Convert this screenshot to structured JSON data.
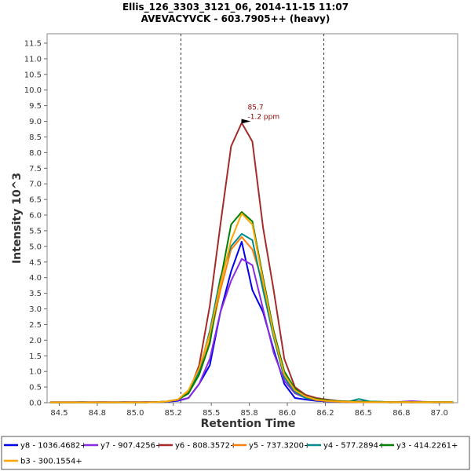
{
  "chart_data": {
    "type": "line",
    "title": "Ellis_126_3303_3121_06, 2014-11-15 11:07",
    "subtitle": "AVEVACYVCK - 603.7905++ (heavy)",
    "xlabel": "Retention Time",
    "ylabel": "Intensity 10^3",
    "xlim": [
      84.42,
      87.12
    ],
    "ylim": [
      0,
      11.8
    ],
    "x_ticks": [
      "84.5",
      "84.8",
      "85.0",
      "85.2",
      "85.5",
      "85.8",
      "86.0",
      "86.2",
      "86.5",
      "86.8",
      "87.0"
    ],
    "x_tick_values": [
      84.5,
      84.75,
      85.0,
      85.25,
      85.5,
      85.75,
      86.0,
      86.25,
      86.5,
      86.75,
      87.0
    ],
    "y_ticks": [
      "0.0",
      "0.5",
      "1.0",
      "1.5",
      "2.0",
      "2.5",
      "3.0",
      "3.5",
      "4.0",
      "4.5",
      "5.0",
      "5.5",
      "6.0",
      "6.5",
      "7.0",
      "7.5",
      "8.0",
      "8.5",
      "9.0",
      "9.5",
      "10.0",
      "10.5",
      "11.0",
      "11.5"
    ],
    "y_tick_values": [
      0,
      0.5,
      1,
      1.5,
      2,
      2.5,
      3,
      3.5,
      4,
      4.5,
      5,
      5.5,
      6,
      6.5,
      7,
      7.5,
      8,
      8.5,
      9,
      9.5,
      10,
      10.5,
      11,
      11.5
    ],
    "boundaries": [
      85.3,
      86.24
    ],
    "x": [
      84.44,
      84.51,
      84.58,
      84.65,
      84.72,
      84.79,
      84.86,
      84.93,
      85.0,
      85.07,
      85.14,
      85.21,
      85.28,
      85.35,
      85.42,
      85.49,
      85.56,
      85.63,
      85.7,
      85.77,
      85.84,
      85.91,
      85.98,
      86.05,
      86.12,
      86.19,
      86.26,
      86.33,
      86.4,
      86.47,
      86.54,
      86.61,
      86.68,
      86.75,
      86.82,
      86.89,
      86.96,
      87.03,
      87.09
    ],
    "series": [
      {
        "name": "y8 - 1036.4682+",
        "color": "#0000ee",
        "values": [
          0.01,
          0.01,
          0.01,
          0.02,
          0.01,
          0.01,
          0.01,
          0.02,
          0.01,
          0.02,
          0.02,
          0.03,
          0.06,
          0.15,
          0.6,
          1.2,
          2.9,
          4.2,
          5.15,
          3.6,
          2.9,
          1.7,
          0.6,
          0.15,
          0.1,
          0.06,
          0.04,
          0.03,
          0.02,
          0.02,
          0.02,
          0.02,
          0.01,
          0.02,
          0.01,
          0.02,
          0.01,
          0.01,
          0.01
        ]
      },
      {
        "name": "y7 - 907.4256+",
        "color": "#8a2be2",
        "values": [
          0.01,
          0.01,
          0.01,
          0.01,
          0.01,
          0.02,
          0.01,
          0.01,
          0.02,
          0.01,
          0.02,
          0.04,
          0.08,
          0.15,
          0.6,
          1.4,
          2.9,
          3.9,
          4.6,
          4.4,
          3.0,
          1.6,
          0.7,
          0.3,
          0.15,
          0.1,
          0.06,
          0.04,
          0.03,
          0.03,
          0.02,
          0.02,
          0.02,
          0.03,
          0.05,
          0.03,
          0.02,
          0.02,
          0.02
        ]
      },
      {
        "name": "y6 - 808.3572+",
        "color": "#a52a2a",
        "values": [
          0.02,
          0.02,
          0.02,
          0.02,
          0.02,
          0.02,
          0.02,
          0.02,
          0.02,
          0.02,
          0.02,
          0.04,
          0.1,
          0.3,
          1.2,
          3.1,
          5.7,
          8.2,
          8.95,
          8.35,
          5.6,
          3.6,
          1.4,
          0.5,
          0.25,
          0.15,
          0.1,
          0.06,
          0.04,
          0.04,
          0.03,
          0.03,
          0.02,
          0.02,
          0.02,
          0.02,
          0.02,
          0.02,
          0.02
        ]
      },
      {
        "name": "y5 - 737.3200+",
        "color": "#ff7f0e",
        "values": [
          0.01,
          0.01,
          0.01,
          0.01,
          0.01,
          0.01,
          0.01,
          0.01,
          0.01,
          0.01,
          0.02,
          0.04,
          0.1,
          0.35,
          0.9,
          2.0,
          3.6,
          4.9,
          5.3,
          4.9,
          3.8,
          2.3,
          0.9,
          0.35,
          0.15,
          0.08,
          0.05,
          0.03,
          0.02,
          0.02,
          0.02,
          0.02,
          0.01,
          0.01,
          0.01,
          0.01,
          0.01,
          0.01,
          0.01
        ]
      },
      {
        "name": "y4 - 577.2894+",
        "color": "#008b8b",
        "values": [
          0.01,
          0.01,
          0.01,
          0.01,
          0.01,
          0.01,
          0.01,
          0.01,
          0.01,
          0.01,
          0.02,
          0.04,
          0.1,
          0.3,
          1.0,
          2.3,
          4.0,
          5.0,
          5.4,
          5.2,
          3.6,
          2.1,
          0.8,
          0.35,
          0.15,
          0.1,
          0.06,
          0.04,
          0.03,
          0.12,
          0.04,
          0.03,
          0.02,
          0.02,
          0.02,
          0.02,
          0.02,
          0.02,
          0.02
        ]
      },
      {
        "name": "y3 - 414.2261+",
        "color": "#008000",
        "values": [
          0.01,
          0.01,
          0.01,
          0.01,
          0.01,
          0.01,
          0.01,
          0.01,
          0.01,
          0.01,
          0.02,
          0.04,
          0.1,
          0.3,
          0.9,
          1.9,
          3.9,
          5.7,
          6.1,
          5.8,
          4.0,
          2.3,
          1.0,
          0.45,
          0.2,
          0.12,
          0.08,
          0.05,
          0.04,
          0.03,
          0.03,
          0.02,
          0.02,
          0.02,
          0.02,
          0.02,
          0.02,
          0.02,
          0.02
        ]
      },
      {
        "name": "b3 - 300.1554+",
        "color": "#ffa500",
        "values": [
          0.01,
          0.01,
          0.01,
          0.01,
          0.01,
          0.01,
          0.01,
          0.01,
          0.01,
          0.01,
          0.02,
          0.04,
          0.1,
          0.4,
          1.1,
          2.2,
          3.8,
          5.2,
          6.05,
          5.7,
          3.9,
          2.2,
          0.9,
          0.4,
          0.2,
          0.1,
          0.06,
          0.04,
          0.03,
          0.02,
          0.02,
          0.02,
          0.02,
          0.02,
          0.02,
          0.02,
          0.02,
          0.02,
          0.02
        ]
      }
    ],
    "annotation": {
      "line1": "85.7",
      "line2": "-1.2 ppm",
      "x": 85.77,
      "y": 8.95,
      "color": "#8b0000"
    }
  }
}
